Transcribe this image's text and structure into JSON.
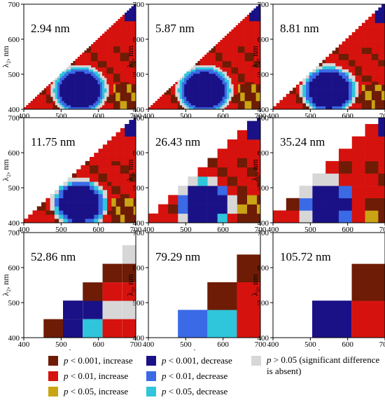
{
  "chart_data": {
    "type": "heatmap",
    "x_label": "λ₁, nm",
    "y_label": "λ₂, nm",
    "x_ticks": [
      400,
      500,
      600,
      700
    ],
    "y_ticks": [
      400,
      500,
      600,
      700
    ],
    "xlim": [
      400,
      700
    ],
    "ylim": [
      400,
      700
    ],
    "colors": {
      "dec001": "#1a1186",
      "dec01": "#3a6ae6",
      "dec05": "#2fc5db",
      "inc001": "#6e1c05",
      "inc01": "#d6120e",
      "inc05": "#c9a414",
      "ns": "#d7d7d7"
    },
    "panels": [
      {
        "label": "2.94 nm",
        "step": 2.94
      },
      {
        "label": "5.87 nm",
        "step": 5.87
      },
      {
        "label": "8.81 nm",
        "step": 8.81
      },
      {
        "label": "11.75 nm",
        "step": 11.75
      },
      {
        "label": "26.43 nm",
        "step": 26.43
      },
      {
        "label": "35.24 nm",
        "step": 35.24
      },
      {
        "label": "52.86 nm",
        "step": 52.86,
        "cells": [
          [
            453,
            400,
            "inc001"
          ],
          [
            505,
            400,
            "dec001"
          ],
          [
            558,
            400,
            "dec05"
          ],
          [
            611,
            400,
            "inc01"
          ],
          [
            664,
            400,
            "inc01"
          ],
          [
            505,
            453,
            "dec001"
          ],
          [
            558,
            453,
            "dec001"
          ],
          [
            611,
            453,
            "ns"
          ],
          [
            664,
            453,
            "ns"
          ],
          [
            558,
            505,
            "inc001"
          ],
          [
            611,
            505,
            "inc01"
          ],
          [
            664,
            505,
            "inc01"
          ],
          [
            611,
            558,
            "inc001"
          ],
          [
            664,
            558,
            "inc001"
          ],
          [
            664,
            611,
            "ns"
          ]
        ]
      },
      {
        "label": "79.29 nm",
        "step": 79.29,
        "cells": [
          [
            479,
            400,
            "dec01"
          ],
          [
            558,
            400,
            "dec05"
          ],
          [
            637,
            400,
            "inc01"
          ],
          [
            558,
            479,
            "inc001"
          ],
          [
            637,
            479,
            "inc01"
          ],
          [
            637,
            558,
            "inc001"
          ]
        ]
      },
      {
        "label": "105.72 nm",
        "step": 105.72,
        "cells": [
          [
            505,
            400,
            "dec001"
          ],
          [
            611,
            400,
            "inc01"
          ],
          [
            611,
            505,
            "inc001"
          ]
        ]
      }
    ]
  },
  "legend": {
    "items": [
      {
        "key": "inc001",
        "p": "p",
        "text": " < 0.001, increase"
      },
      {
        "key": "dec001",
        "p": "p",
        "text": " < 0.001, decrease"
      },
      {
        "key": "inc01",
        "p": "p",
        "text": " < 0.01, increase"
      },
      {
        "key": "dec01",
        "p": "p",
        "text": " < 0.01, decrease"
      },
      {
        "key": "inc05",
        "p": "p",
        "text": " < 0.05, increase"
      },
      {
        "key": "dec05",
        "p": "p",
        "text": " < 0.05, decrease"
      }
    ],
    "ns": {
      "p": "p",
      "text": " > 0.05 (significant difference is absent)"
    }
  }
}
